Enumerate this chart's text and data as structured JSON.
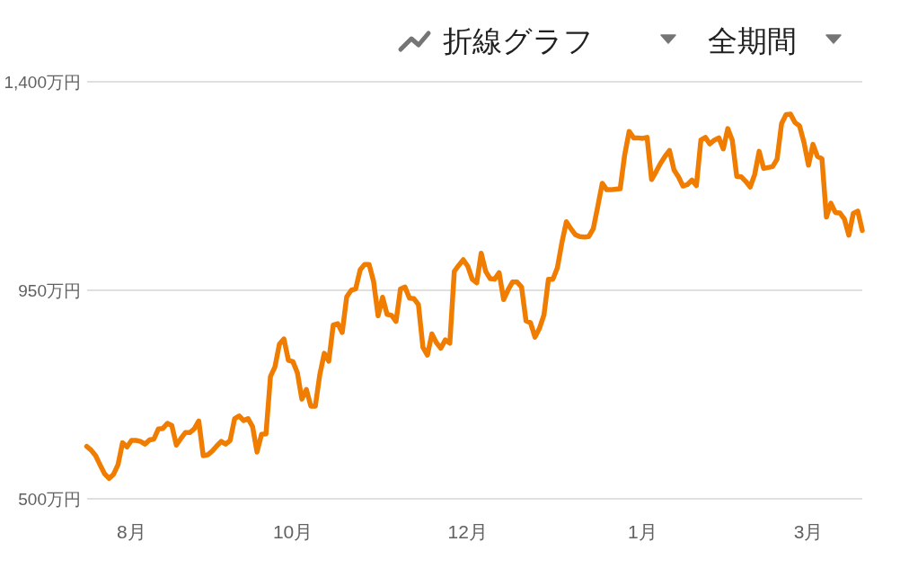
{
  "chart_data": {
    "type": "line",
    "categories": [
      null,
      null,
      null,
      null,
      null,
      null,
      null,
      null,
      null,
      null,
      "8月",
      null,
      null,
      null,
      null,
      null,
      null,
      null,
      null,
      null,
      null,
      null,
      null,
      null,
      null,
      null,
      null,
      null,
      null,
      null,
      null,
      null,
      null,
      null,
      null,
      null,
      null,
      null,
      null,
      null,
      null,
      null,
      null,
      null,
      null,
      null,
      "10月",
      null,
      null,
      null,
      null,
      null,
      null,
      null,
      null,
      null,
      null,
      null,
      null,
      null,
      null,
      null,
      null,
      null,
      null,
      null,
      null,
      null,
      null,
      null,
      null,
      null,
      null,
      null,
      null,
      null,
      null,
      null,
      null,
      null,
      null,
      null,
      null,
      null,
      null,
      "12月",
      null,
      null,
      null,
      null,
      null,
      null,
      null,
      null,
      null,
      null,
      null,
      null,
      null,
      null,
      null,
      null,
      null,
      null,
      null,
      null,
      null,
      null,
      null,
      null,
      null,
      null,
      null,
      null,
      null,
      null,
      null,
      null,
      null,
      null,
      null,
      null,
      null,
      null,
      "1月",
      null,
      null,
      null,
      null,
      null,
      null,
      null,
      null,
      null,
      null,
      null,
      null,
      null,
      null,
      null,
      null,
      null,
      null,
      null,
      null,
      null,
      null,
      null,
      null,
      null,
      null,
      null,
      null,
      null,
      null,
      null,
      null,
      null,
      null,
      null,
      null,
      "3月",
      null,
      null,
      null,
      null,
      null,
      null,
      null,
      null,
      null,
      null,
      null,
      null
    ],
    "series": [
      {
        "color": "#f07c00",
        "values": [
          613,
          605,
          593,
          573,
          554,
          544,
          553,
          574,
          621,
          612,
          626,
          626,
          624,
          618,
          627,
          629,
          651,
          652,
          663,
          658,
          616,
          630,
          643,
          643,
          651,
          668,
          593,
          595,
          603,
          614,
          624,
          618,
          626,
          673,
          679,
          669,
          673,
          656,
          601,
          639,
          640,
          764,
          785,
          834,
          845,
          799,
          796,
          772,
          715,
          736,
          700,
          700,
          768,
          814,
          797,
          875,
          878,
          859,
          936,
          950,
          953,
          994,
          1006,
          1006,
          969,
          895,
          935,
          898,
          896,
          883,
          953,
          957,
          933,
          932,
          919,
          827,
          810,
          856,
          837,
          825,
          843,
          836,
          991,
          1004,
          1016,
          1002,
          974,
          966,
          1030,
          991,
          975,
          974,
          988,
          930,
          951,
          968,
          968,
          957,
          884,
          880,
          849,
          868,
          897,
          974,
          974,
          999,
          1053,
          1098,
          1083,
          1070,
          1066,
          1065,
          1066,
          1083,
          1131,
          1181,
          1167,
          1167,
          1168,
          1169,
          1242,
          1293,
          1279,
          1279,
          1278,
          1280,
          1189,
          1206,
          1224,
          1239,
          1252,
          1210,
          1195,
          1175,
          1178,
          1188,
          1176,
          1274,
          1280,
          1266,
          1274,
          1279,
          1255,
          1299,
          1274,
          1196,
          1195,
          1185,
          1173,
          1200,
          1250,
          1213,
          1215,
          1217,
          1233,
          1310,
          1329,
          1330,
          1312,
          1305,
          1269,
          1220,
          1265,
          1239,
          1234,
          1108,
          1138,
          1118,
          1117,
          1104,
          1069,
          1116,
          1121,
          1079
        ]
      }
    ],
    "ylim": [
      500,
      1400
    ],
    "yticks": [
      {
        "value": 500,
        "label": "500万円"
      },
      {
        "value": 950,
        "label": "950万円"
      },
      {
        "value": 1400,
        "label": "1,400万円"
      }
    ],
    "grid": "y",
    "line_style": "solid",
    "annotations": [
      "折線グラフ",
      "全期間"
    ]
  }
}
